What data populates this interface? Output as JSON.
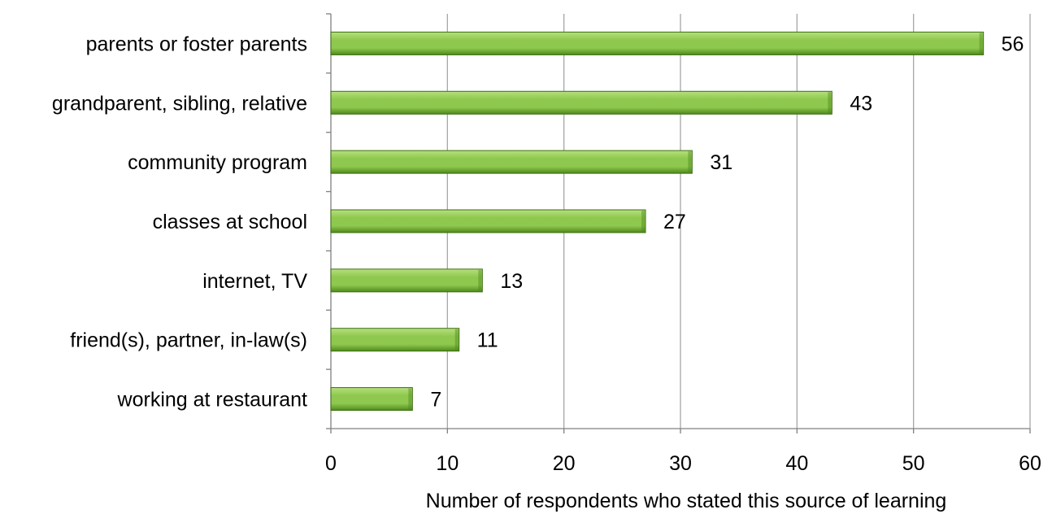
{
  "chart_data": {
    "type": "bar",
    "orientation": "horizontal",
    "categories": [
      "parents or foster parents",
      "grandparent, sibling, relative",
      "community program",
      "classes at school",
      "internet, TV",
      "friend(s), partner, in-law(s)",
      "working at restaurant"
    ],
    "values": [
      56,
      43,
      31,
      27,
      13,
      11,
      7
    ],
    "data_labels": [
      "56",
      "43",
      "31",
      "27",
      "13",
      "11",
      "7"
    ],
    "title": "",
    "xlabel": "Number of  respondents who stated this source of learning",
    "ylabel": "",
    "xlim": [
      0,
      60
    ],
    "xticks": [
      0,
      10,
      20,
      30,
      40,
      50,
      60
    ],
    "grid": "vertical",
    "legend": "none",
    "colors": {
      "bar_light": "#b6e07e",
      "bar_mid": "#8fc84e",
      "bar_dark": "#4e8a1c",
      "bar_edge": "#3d6e12",
      "grid": "#a6a6a6",
      "axis": "#808080"
    }
  }
}
